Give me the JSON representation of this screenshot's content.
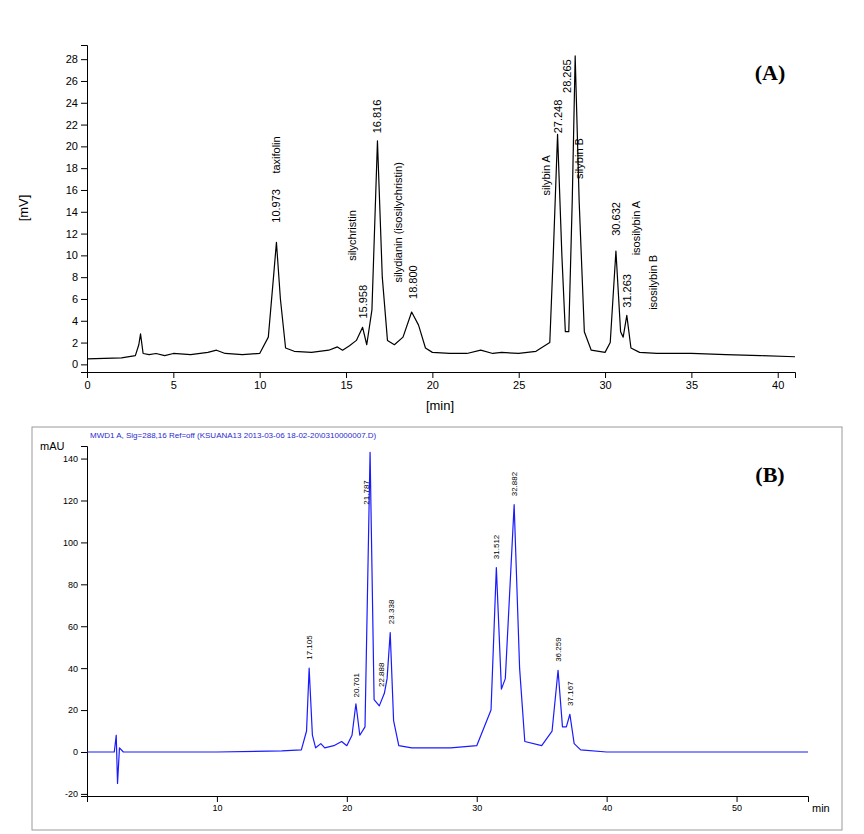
{
  "chart_data": [
    {
      "type": "line",
      "title": "(A)",
      "xlabel": "[min]",
      "ylabel": "[mV]",
      "color": "#000000",
      "xlim": [
        0,
        41
      ],
      "ylim": [
        -0.7,
        29.3
      ],
      "xticks": [
        0,
        5,
        10,
        15,
        20,
        25,
        30,
        35,
        40
      ],
      "yticks": [
        0,
        2,
        4,
        6,
        8,
        10,
        12,
        14,
        16,
        18,
        20,
        22,
        24,
        26,
        28
      ],
      "x": [
        0,
        2,
        2.8,
        3.0,
        3.1,
        3.25,
        3.6,
        4,
        4.5,
        5,
        6,
        7,
        7.5,
        8,
        9,
        10,
        10.5,
        10.8,
        10.97,
        11.2,
        11.5,
        12,
        13,
        14,
        14.5,
        14.8,
        15.2,
        15.6,
        15.96,
        16.2,
        16.5,
        16.82,
        17.1,
        17.4,
        17.8,
        18.3,
        18.8,
        19.2,
        19.6,
        20,
        21,
        22,
        22.8,
        23.5,
        24,
        25,
        26,
        26.8,
        27.0,
        27.25,
        27.5,
        27.7,
        27.9,
        28.1,
        28.27,
        28.5,
        28.8,
        29.2,
        30,
        30.3,
        30.63,
        30.9,
        31.05,
        31.26,
        31.5,
        32,
        33,
        35,
        37,
        39,
        41
      ],
      "values": [
        0.5,
        0.6,
        0.8,
        1.8,
        2.8,
        1.0,
        0.9,
        1.0,
        0.8,
        1.0,
        0.9,
        1.1,
        1.3,
        1.0,
        0.9,
        1.0,
        2.5,
        8.0,
        11.2,
        6.0,
        1.5,
        1.2,
        1.1,
        1.3,
        1.6,
        1.3,
        1.7,
        2.2,
        3.4,
        1.8,
        5.0,
        20.5,
        8.0,
        2.2,
        1.8,
        2.5,
        4.8,
        3.6,
        1.5,
        1.1,
        1.0,
        1.0,
        1.3,
        1.0,
        1.1,
        1.0,
        1.2,
        2.0,
        10.0,
        21.1,
        10.0,
        3.0,
        3.0,
        15.0,
        28.3,
        15.0,
        3.0,
        1.3,
        1.1,
        2.0,
        10.4,
        3.0,
        2.5,
        4.5,
        1.5,
        1.1,
        1.0,
        1.0,
        0.9,
        0.8,
        0.7
      ],
      "annotations": [
        {
          "text": "taxifolin",
          "x": 11.2,
          "y": 17.5
        },
        {
          "text": "10.973",
          "x": 11.2,
          "y": 13.0
        },
        {
          "text": "15.958",
          "x": 16.2,
          "y": 4.2
        },
        {
          "text": "silychristin",
          "x": 15.6,
          "y": 9.5
        },
        {
          "text": "16.816",
          "x": 17.05,
          "y": 21.2
        },
        {
          "text": "silydianin (isosilychristin)",
          "x": 18.25,
          "y": 7.5
        },
        {
          "text": "18.800",
          "x": 19.1,
          "y": 6.0
        },
        {
          "text": "silybin A",
          "x": 26.8,
          "y": 15.5
        },
        {
          "text": "27.248",
          "x": 27.5,
          "y": 21.2
        },
        {
          "text": "28.265",
          "x": 28.05,
          "y": 24.9
        },
        {
          "text": "silybin B",
          "x": 28.75,
          "y": 17.0
        },
        {
          "text": "30.632",
          "x": 30.85,
          "y": 11.8
        },
        {
          "text": "isosilybin A",
          "x": 32.0,
          "y": 10.0
        },
        {
          "text": "31.263",
          "x": 31.5,
          "y": 5.2
        },
        {
          "text": "isosilybin B",
          "x": 33.0,
          "y": 5.0
        }
      ]
    },
    {
      "type": "line",
      "title": "(B)",
      "subtitle": "MWD1 A, Sig=288,16 Ref=off (KSUANA13 2013-03-06 18-02-20\\0310000007.D)",
      "xlabel": "min",
      "ylabel": "mAU",
      "color": "#1a1aff",
      "xlim": [
        0,
        55.5
      ],
      "ylim": [
        -21,
        146
      ],
      "xticks": [
        10,
        20,
        30,
        40,
        50
      ],
      "yticks": [
        -20,
        0,
        20,
        40,
        60,
        80,
        100,
        120,
        140
      ],
      "x": [
        0,
        2.1,
        2.25,
        2.35,
        2.5,
        2.8,
        10,
        15,
        16.5,
        16.9,
        17.1,
        17.35,
        17.6,
        18,
        18.3,
        19,
        19.6,
        20,
        20.4,
        20.7,
        21.0,
        21.4,
        21.79,
        22.1,
        22.5,
        22.89,
        23.1,
        23.34,
        23.6,
        24,
        25,
        28,
        30,
        31.1,
        31.51,
        31.9,
        32.2,
        32.88,
        33.3,
        33.7,
        35,
        35.8,
        36.26,
        36.6,
        36.9,
        37.17,
        37.5,
        38,
        40,
        50,
        55.5
      ],
      "values": [
        0,
        0,
        8,
        -15,
        2,
        0,
        0,
        0.5,
        1,
        10,
        40,
        8,
        2,
        4,
        2,
        3,
        5,
        3,
        8,
        23,
        8,
        12,
        143,
        25,
        22,
        28,
        35,
        57,
        15,
        3,
        2,
        2,
        3,
        20,
        88,
        30,
        35,
        118,
        40,
        5,
        3,
        10,
        39,
        12,
        12,
        18,
        4,
        1,
        0,
        0,
        0
      ],
      "annotations": [
        {
          "text": "17.105",
          "x": 17.35,
          "y": 44
        },
        {
          "text": "20.701",
          "x": 20.95,
          "y": 26
        },
        {
          "text": "21.787",
          "x": 21.7,
          "y": 118
        },
        {
          "text": "22.888",
          "x": 22.85,
          "y": 31
        },
        {
          "text": "23.338",
          "x": 23.6,
          "y": 61
        },
        {
          "text": "31.512",
          "x": 31.75,
          "y": 92
        },
        {
          "text": "32.882",
          "x": 33.1,
          "y": 122
        },
        {
          "text": "36.259",
          "x": 36.5,
          "y": 43
        },
        {
          "text": "37.167",
          "x": 37.4,
          "y": 22
        }
      ]
    }
  ]
}
